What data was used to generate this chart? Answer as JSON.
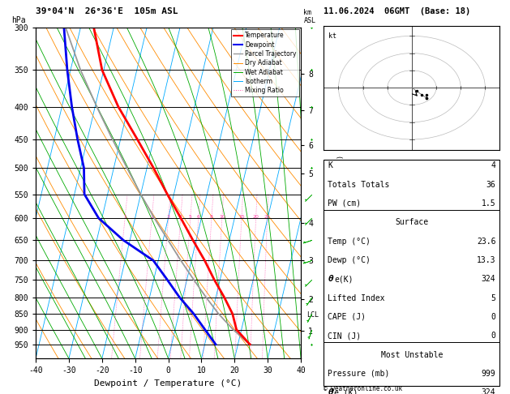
{
  "title_left": "39°04'N  26°36'E  105m ASL",
  "title_right": "11.06.2024  06GMT  (Base: 18)",
  "xlabel": "Dewpoint / Temperature (°C)",
  "ylabel_left": "hPa",
  "pressure_levels": [
    300,
    350,
    400,
    450,
    500,
    550,
    600,
    650,
    700,
    750,
    800,
    850,
    900,
    950
  ],
  "xlim": [
    -40,
    40
  ],
  "pmin": 300,
  "pmax": 1000,
  "skew_factor": 45.0,
  "isotherm_color": "#00AAFF",
  "dry_adiabat_color": "#FF8C00",
  "wet_adiabat_color": "#00AA00",
  "mixing_ratio_color": "#FF44AA",
  "temp_color": "#FF0000",
  "dewp_color": "#0000EE",
  "parcel_color": "#999999",
  "temp_profile_p": [
    950,
    900,
    850,
    800,
    750,
    700,
    650,
    600,
    550,
    500,
    450,
    400,
    350,
    300
  ],
  "temp_profile_t": [
    23.6,
    18.5,
    16.2,
    12.5,
    8.2,
    4.0,
    -1.0,
    -6.2,
    -12.0,
    -18.0,
    -25.0,
    -33.0,
    -40.5,
    -46.0
  ],
  "dewp_profile_p": [
    950,
    900,
    850,
    800,
    750,
    700,
    650,
    600,
    550,
    500,
    450,
    400,
    350,
    300
  ],
  "dewp_profile_t": [
    13.3,
    9.0,
    4.5,
    -1.0,
    -6.0,
    -11.5,
    -22.0,
    -31.0,
    -37.0,
    -39.0,
    -43.0,
    -47.0,
    -51.0,
    -55.0
  ],
  "parcel_p": [
    950,
    900,
    850,
    800,
    750,
    700,
    650,
    600,
    550,
    500,
    450,
    400,
    350,
    300
  ],
  "parcel_t": [
    23.6,
    17.5,
    12.0,
    7.0,
    2.0,
    -3.2,
    -8.5,
    -14.2,
    -20.0,
    -26.0,
    -32.5,
    -39.5,
    -47.0,
    -54.5
  ],
  "km_ticks": [
    1,
    2,
    3,
    4,
    5,
    6,
    7,
    8
  ],
  "km_pressures": [
    905,
    805,
    700,
    610,
    510,
    460,
    405,
    355
  ],
  "lcl_pressure": 853,
  "mix_ratios": [
    1,
    2,
    3,
    4,
    5,
    6,
    8,
    10,
    15,
    20,
    25
  ],
  "wind_p": [
    950,
    900,
    850,
    800,
    750,
    700,
    650,
    600,
    550,
    500,
    450,
    400,
    350,
    300
  ],
  "wind_u": [
    1,
    1,
    2,
    2,
    2,
    3,
    3,
    2,
    2,
    2,
    1,
    1,
    1,
    1
  ],
  "wind_v": [
    2,
    3,
    4,
    3,
    2,
    1,
    1,
    2,
    2,
    1,
    1,
    1,
    1,
    1
  ],
  "hodo_u": [
    0,
    1,
    2,
    3,
    3,
    3
  ],
  "hodo_v": [
    0,
    -1,
    -2,
    -3,
    -3,
    -2
  ],
  "table_fs": 7.0,
  "header_fs": 7.0
}
